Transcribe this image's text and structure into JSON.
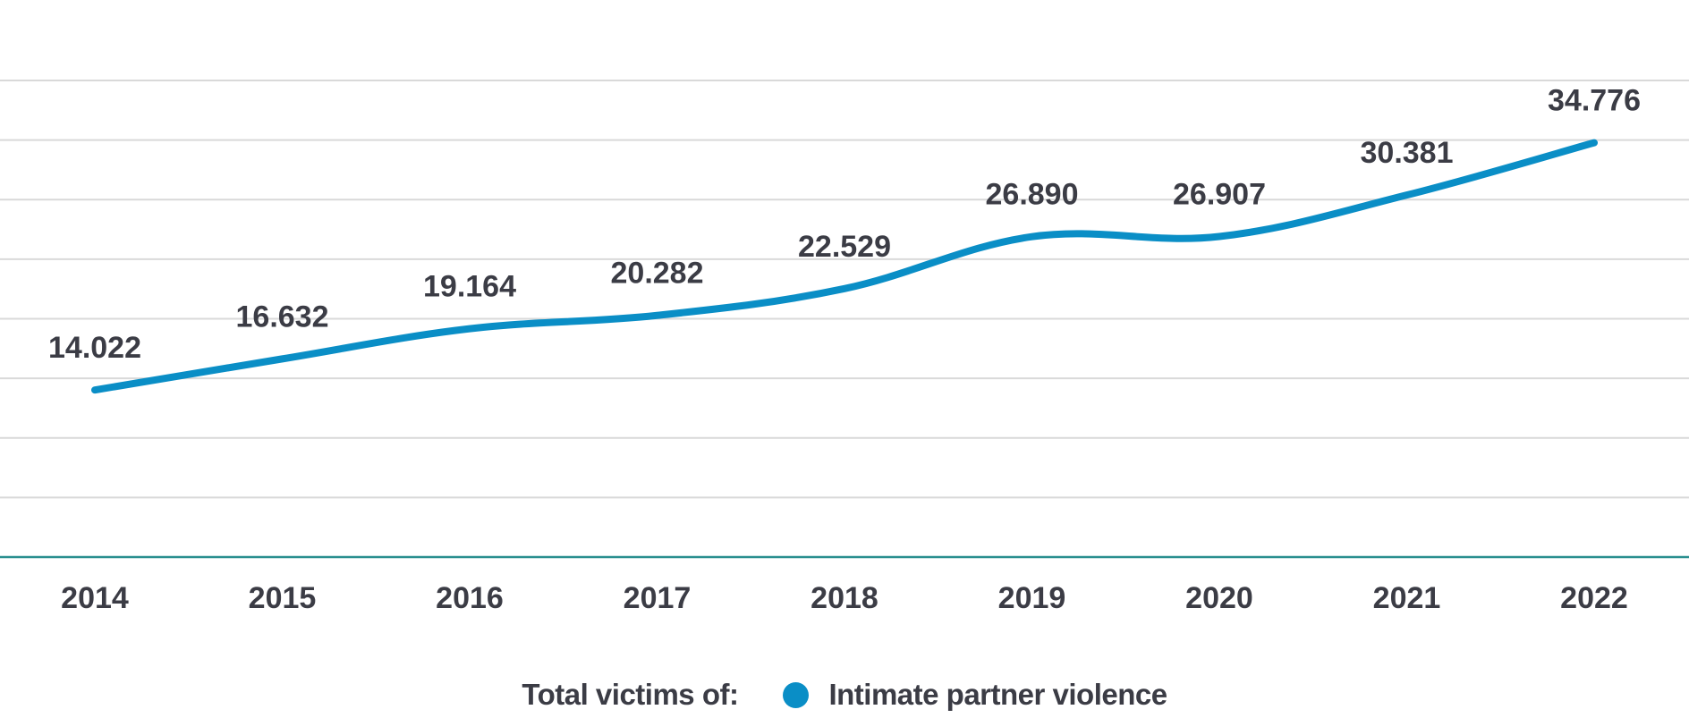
{
  "chart_data": {
    "type": "line",
    "title": "",
    "xlabel": "",
    "ylabel": "",
    "categories": [
      "2014",
      "2015",
      "2016",
      "2017",
      "2018",
      "2019",
      "2020",
      "2021",
      "2022"
    ],
    "series": [
      {
        "name": "Intimate partner violence",
        "values": [
          14022,
          16632,
          19164,
          20282,
          22529,
          26890,
          26907,
          30381,
          34776
        ],
        "labels": [
          "14.022",
          "16.632",
          "19.164",
          "20.282",
          "22.529",
          "26.890",
          "26.907",
          "30.381",
          "34.776"
        ],
        "color": "#0a8ec6"
      }
    ],
    "ylim": [
      0,
      40000
    ],
    "ytick_step": 5000,
    "grid": true,
    "legend_position": "bottom-center"
  },
  "legend": {
    "prefix": "Total victims of:",
    "items": [
      {
        "label": "Intimate partner violence",
        "color": "#0a8ec6"
      }
    ]
  },
  "colors": {
    "text": "#3b3c45",
    "grid": "#d9d9d9",
    "axis": "#2a8f8f",
    "line": "#0a8ec6"
  }
}
